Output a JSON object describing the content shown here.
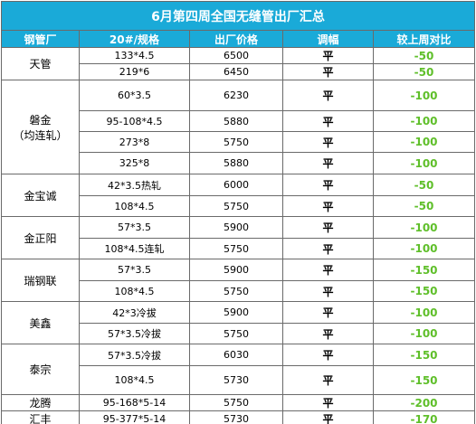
{
  "title": "6月第四周全国无缝管出厂汇总",
  "headers": [
    "钢管厂",
    "20#/规格",
    "出厂价格",
    "调幅",
    "较上周对比"
  ],
  "colors": {
    "header_bg": "#1aaad8",
    "header_text": "#ffffff",
    "compare_text": "#5fbf2a",
    "border": "#6a6a6a"
  },
  "groups": [
    {
      "mill": "天管",
      "rows": [
        {
          "spec": "133*4.5",
          "price": "6500",
          "adj": "平",
          "cmp": "-50"
        },
        {
          "spec": "219*6",
          "price": "6450",
          "adj": "平",
          "cmp": "-50"
        }
      ]
    },
    {
      "mill": "磐金\n（均连轧）",
      "rows": [
        {
          "spec": "60*3.5",
          "price": "6230",
          "adj": "平",
          "cmp": "-100"
        },
        {
          "spec": "95-108*4.5",
          "price": "5880",
          "adj": "平",
          "cmp": "-100"
        },
        {
          "spec": "273*8",
          "price": "5750",
          "adj": "平",
          "cmp": "-100"
        },
        {
          "spec": "325*8",
          "price": "5880",
          "adj": "平",
          "cmp": "-100"
        }
      ]
    },
    {
      "mill": "金宝诚",
      "rows": [
        {
          "spec": "42*3.5热轧",
          "price": "6000",
          "adj": "平",
          "cmp": "-50"
        },
        {
          "spec": "108*4.5",
          "price": "5750",
          "adj": "平",
          "cmp": "-50"
        }
      ]
    },
    {
      "mill": "金正阳",
      "rows": [
        {
          "spec": "57*3.5",
          "price": "5900",
          "adj": "平",
          "cmp": "-100"
        },
        {
          "spec": "108*4.5连轧",
          "price": "5750",
          "adj": "平",
          "cmp": "-100"
        }
      ]
    },
    {
      "mill": "瑞钢联",
      "rows": [
        {
          "spec": "57*3.5",
          "price": "5900",
          "adj": "平",
          "cmp": "-150"
        },
        {
          "spec": "108*4.5",
          "price": "5750",
          "adj": "平",
          "cmp": "-150"
        }
      ]
    },
    {
      "mill": "美鑫",
      "rows": [
        {
          "spec": "42*3冷拔",
          "price": "5900",
          "adj": "平",
          "cmp": "-100"
        },
        {
          "spec": "57*3.5冷拔",
          "price": "5750",
          "adj": "平",
          "cmp": "-100"
        }
      ]
    },
    {
      "mill": "泰宗",
      "rows": [
        {
          "spec": "57*3.5冷拔",
          "price": "6030",
          "adj": "平",
          "cmp": "-150"
        },
        {
          "spec": "108*4.5",
          "price": "5730",
          "adj": "平",
          "cmp": "-150"
        }
      ]
    },
    {
      "mill": "龙腾",
      "rows": [
        {
          "spec": "95-168*5-14",
          "price": "5750",
          "adj": "平",
          "cmp": "-200"
        }
      ]
    },
    {
      "mill": "汇丰",
      "rows": [
        {
          "spec": "95-377*5-14",
          "price": "5730",
          "adj": "平",
          "cmp": "-170"
        }
      ]
    }
  ]
}
